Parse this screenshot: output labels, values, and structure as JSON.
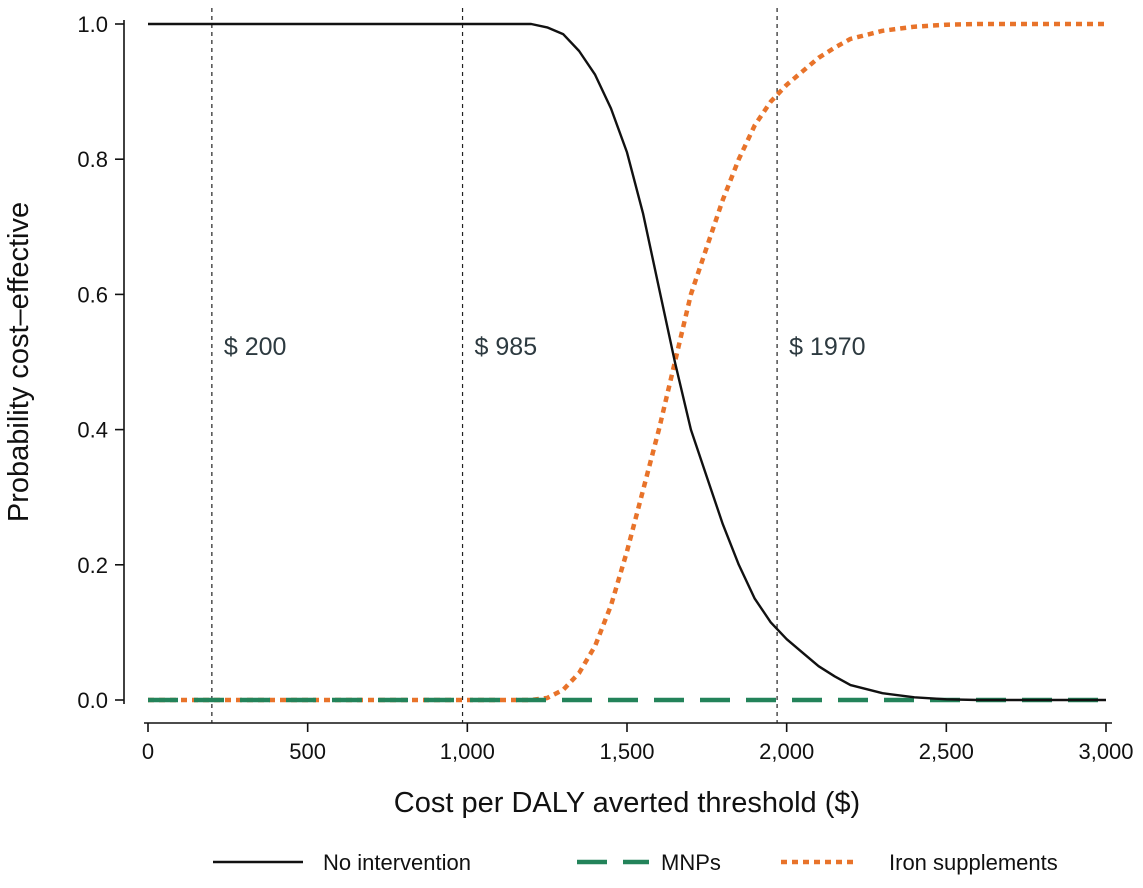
{
  "chart_data": {
    "type": "line",
    "title": "",
    "xlabel": "Cost per DALY averted threshold ($)",
    "ylabel": "Probability cost–effective",
    "xlim": [
      0,
      3000
    ],
    "ylim": [
      0,
      1
    ],
    "xticks": [
      0,
      500,
      1000,
      1500,
      2000,
      2500,
      3000
    ],
    "xtick_labels": [
      "0",
      "500",
      "1,000",
      "1,500",
      "2,000",
      "2,500",
      "3,000"
    ],
    "yticks": [
      0,
      0.2,
      0.4,
      0.6,
      0.8,
      1.0
    ],
    "ytick_labels": [
      "0.0",
      "0.2",
      "0.4",
      "0.6",
      "0.8",
      "1.0"
    ],
    "grid": false,
    "legend_position": "bottom",
    "reference_lines": [
      {
        "x": 200,
        "label": "$ 200"
      },
      {
        "x": 985,
        "label": "$ 985"
      },
      {
        "x": 1970,
        "label": "$ 1970"
      }
    ],
    "series": [
      {
        "name": "No intervention",
        "style": "solid",
        "color": "#111111",
        "x": [
          0,
          1000,
          1200,
          1250,
          1300,
          1350,
          1400,
          1450,
          1500,
          1550,
          1600,
          1650,
          1700,
          1750,
          1800,
          1850,
          1900,
          1950,
          2000,
          2050,
          2100,
          2150,
          2200,
          2300,
          2400,
          2500,
          2600,
          3000
        ],
        "y": [
          1.0,
          1.0,
          1.0,
          0.995,
          0.985,
          0.96,
          0.925,
          0.875,
          0.81,
          0.72,
          0.61,
          0.5,
          0.4,
          0.33,
          0.26,
          0.2,
          0.15,
          0.115,
          0.09,
          0.07,
          0.05,
          0.035,
          0.022,
          0.01,
          0.004,
          0.001,
          0.0,
          0.0
        ]
      },
      {
        "name": "MNPs",
        "style": "dashed",
        "color": "#23835a",
        "x": [
          0,
          3000
        ],
        "y": [
          0.0,
          0.0
        ]
      },
      {
        "name": "Iron supplements",
        "style": "dotted",
        "color": "#e8732a",
        "x": [
          0,
          1200,
          1250,
          1300,
          1350,
          1400,
          1450,
          1500,
          1550,
          1600,
          1650,
          1700,
          1750,
          1800,
          1850,
          1900,
          1950,
          2000,
          2050,
          2100,
          2150,
          2200,
          2300,
          2400,
          2500,
          2600,
          3000
        ],
        "y": [
          0.0,
          0.0,
          0.003,
          0.015,
          0.04,
          0.08,
          0.14,
          0.22,
          0.31,
          0.4,
          0.5,
          0.6,
          0.67,
          0.74,
          0.8,
          0.85,
          0.885,
          0.91,
          0.93,
          0.95,
          0.965,
          0.978,
          0.99,
          0.996,
          0.999,
          1.0,
          1.0
        ]
      }
    ]
  }
}
